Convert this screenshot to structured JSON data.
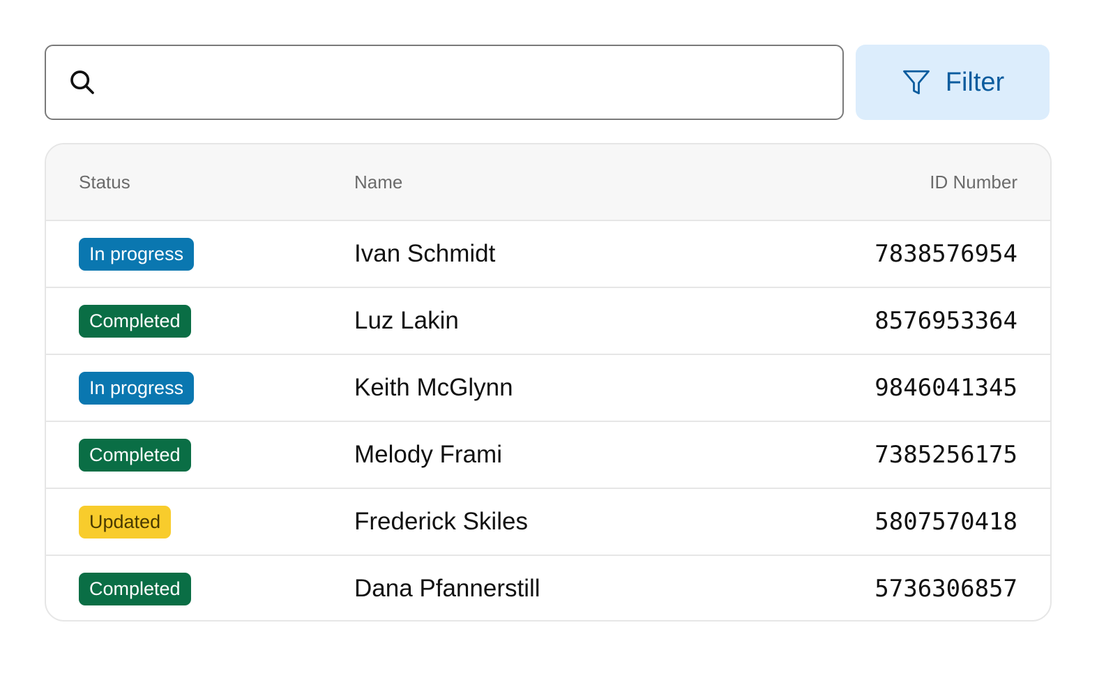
{
  "search": {
    "placeholder": "",
    "value": "",
    "icon": "search-icon"
  },
  "filter": {
    "label": "Filter",
    "icon": "funnel-icon"
  },
  "table": {
    "headers": {
      "status": "Status",
      "name": "Name",
      "id": "ID Number"
    },
    "rows": [
      {
        "status": "In progress",
        "name": "Ivan Schmidt",
        "id": "7838576954"
      },
      {
        "status": "Completed",
        "name": "Luz Lakin",
        "id": "8576953364"
      },
      {
        "status": "In progress",
        "name": "Keith McGlynn",
        "id": "9846041345"
      },
      {
        "status": "Completed",
        "name": "Melody Frami",
        "id": "7385256175"
      },
      {
        "status": "Updated",
        "name": "Frederick Skiles",
        "id": "5807570418"
      },
      {
        "status": "Completed",
        "name": "Dana Pfannerstill",
        "id": "5736306857"
      }
    ]
  },
  "status_colors": {
    "In progress": {
      "bg": "#0a77b0",
      "fg": "#ffffff"
    },
    "Completed": {
      "bg": "#0a6e45",
      "fg": "#ffffff"
    },
    "Updated": {
      "bg": "#f8cc2c",
      "fg": "#4a3a00"
    }
  }
}
